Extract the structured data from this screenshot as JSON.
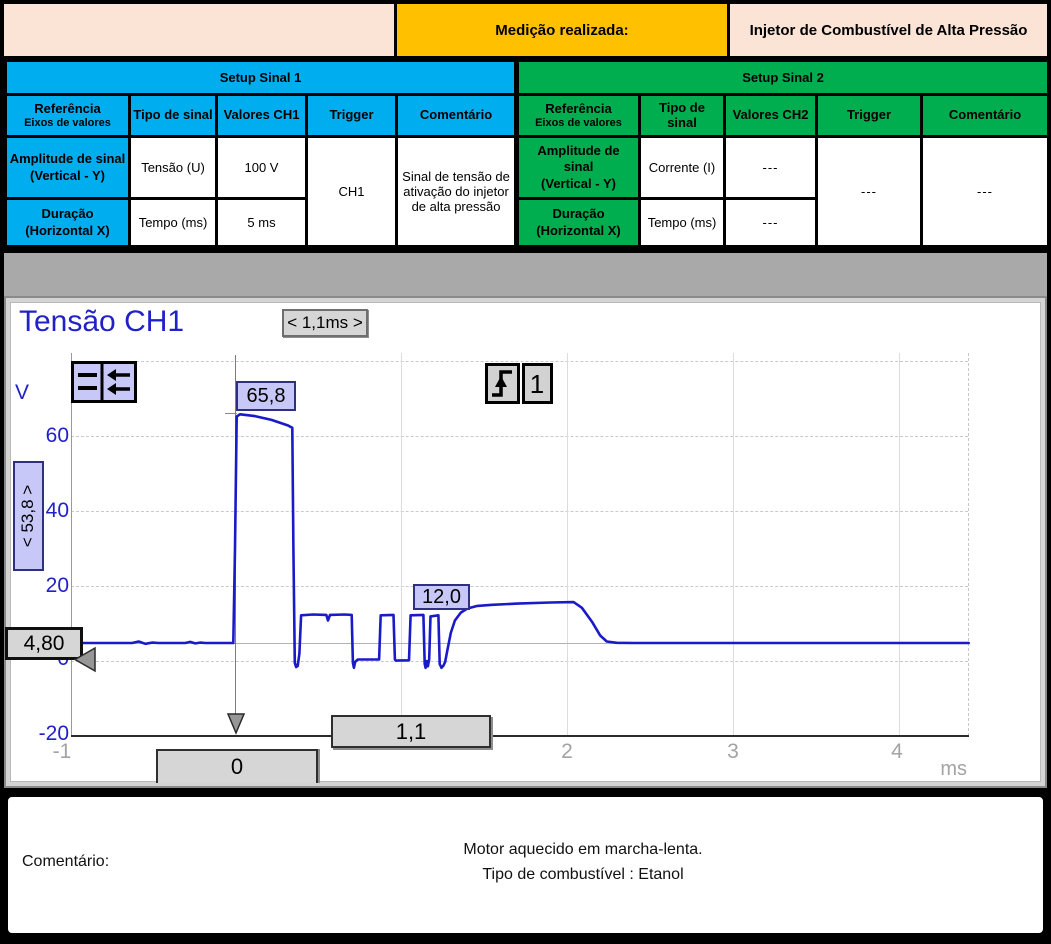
{
  "header": {
    "measurement_label": "Medição realizada:",
    "measurement_value": "Injetor de Combustível de Alta Pressão"
  },
  "colors": {
    "setup1_accent": "#00AEEF",
    "setup2_accent": "#00AD4F",
    "banner_orange": "#FFC000",
    "banner_pink": "#FBE3D6",
    "trace_blue": "#1A1AC8",
    "label_lavender": "#C8C8F8",
    "cursor_gray": "#D6D6D6"
  },
  "setup1": {
    "title": "Setup Sinal 1",
    "columns": [
      {
        "label": "Referência",
        "sub": "Eixos de valores"
      },
      {
        "label": "Tipo de sinal"
      },
      {
        "label": "Valores CH1"
      },
      {
        "label": "Trigger"
      },
      {
        "label": "Comentário"
      }
    ],
    "rows": [
      {
        "ref": "Amplitude de sinal",
        "ref_sub": "(Vertical - Y)",
        "tipo": "Tensão (U)",
        "valor": "100 V"
      },
      {
        "ref": "Duração",
        "ref_sub": "(Horizontal X)",
        "tipo": "Tempo (ms)",
        "valor": "5 ms"
      }
    ],
    "trigger": "CH1",
    "comment": "Sinal de tensão de ativação do injetor de alta pressão"
  },
  "setup2": {
    "title": "Setup Sinal 2",
    "columns": [
      {
        "label": "Referência",
        "sub": "Eixos de valores"
      },
      {
        "label": "Tipo de sinal"
      },
      {
        "label": "Valores CH2"
      },
      {
        "label": "Trigger"
      },
      {
        "label": "Comentário"
      }
    ],
    "rows": [
      {
        "ref": "Amplitude de sinal",
        "ref_sub": "(Vertical - Y)",
        "tipo": "Corrente (I)",
        "valor": "---"
      },
      {
        "ref": "Duração",
        "ref_sub": "(Horizontal X)",
        "tipo": "Tempo (ms)",
        "valor": "---"
      }
    ],
    "trigger": "---",
    "comment": "---"
  },
  "scope": {
    "title": "Tensão CH1",
    "timebase": "< 1,1ms >",
    "unit": "V",
    "trigger_channel": "1",
    "labels": {
      "peak": "65,8",
      "hold": "12,0",
      "delta": "< 53,8 >",
      "ground": "4,80",
      "cursor_dt": "1,1",
      "cursor_t0": "0"
    },
    "y_ticks": [
      "60",
      "40",
      "20",
      "0",
      "-20"
    ],
    "x_ticks": [
      "-1",
      "2",
      "3",
      "4"
    ],
    "x_unit": "ms"
  },
  "chart_data": {
    "type": "line",
    "title": "Tensão CH1",
    "xlabel": "ms",
    "ylabel": "V",
    "xlim": [
      -1,
      4.42
    ],
    "ylim": [
      -20,
      85
    ],
    "grid": true,
    "legend": "none",
    "annotations": [
      {
        "text": "65,8",
        "x": 0.05,
        "y": 65.8
      },
      {
        "text": "12,0",
        "x": 1.15,
        "y": 12.0
      },
      {
        "text": "4,80",
        "x": -1.0,
        "y": 4.8
      },
      {
        "text": "1,1",
        "meaning": "delta-t cursor, ms"
      },
      {
        "text": "< 53,8 >",
        "meaning": "delta-V cursor, V"
      }
    ],
    "series": [
      {
        "name": "Tensão CH1 (V)",
        "points": [
          [
            -1.0,
            4.8
          ],
          [
            -0.62,
            4.8
          ],
          [
            -0.58,
            5.2
          ],
          [
            -0.54,
            4.6
          ],
          [
            -0.5,
            4.9
          ],
          [
            -0.46,
            4.8
          ],
          [
            -0.3,
            4.8
          ],
          [
            -0.27,
            5.1
          ],
          [
            -0.24,
            4.7
          ],
          [
            -0.21,
            4.9
          ],
          [
            -0.18,
            4.8
          ],
          [
            -0.01,
            4.8
          ],
          [
            0.0,
            30.0
          ],
          [
            0.01,
            65.2
          ],
          [
            0.03,
            65.8
          ],
          [
            0.12,
            65.3
          ],
          [
            0.22,
            64.3
          ],
          [
            0.32,
            62.8
          ],
          [
            0.345,
            62.2
          ],
          [
            0.352,
            30.0
          ],
          [
            0.36,
            -0.5
          ],
          [
            0.368,
            -1.6
          ],
          [
            0.378,
            -1.3
          ],
          [
            0.388,
            2.0
          ],
          [
            0.398,
            12.2
          ],
          [
            0.47,
            12.4
          ],
          [
            0.55,
            12.3
          ],
          [
            0.56,
            10.8
          ],
          [
            0.572,
            12.3
          ],
          [
            0.66,
            12.4
          ],
          [
            0.703,
            12.3
          ],
          [
            0.71,
            -0.5
          ],
          [
            0.716,
            -1.8
          ],
          [
            0.724,
            -0.2
          ],
          [
            0.74,
            0.4
          ],
          [
            0.868,
            0.4
          ],
          [
            0.878,
            12.2
          ],
          [
            0.955,
            12.3
          ],
          [
            0.963,
            0.4
          ],
          [
            0.968,
            0.1
          ],
          [
            1.048,
            0.2
          ],
          [
            1.058,
            12.2
          ],
          [
            1.135,
            12.3
          ],
          [
            1.143,
            -0.8
          ],
          [
            1.148,
            -1.8
          ],
          [
            1.155,
            0.0
          ],
          [
            1.162,
            -1.4
          ],
          [
            1.17,
            0.5
          ],
          [
            1.178,
            11.9
          ],
          [
            1.225,
            12.2
          ],
          [
            1.233,
            -0.8
          ],
          [
            1.244,
            -1.8
          ],
          [
            1.256,
            -1.2
          ],
          [
            1.266,
            -0.2
          ],
          [
            1.278,
            2.5
          ],
          [
            1.3,
            7.5
          ],
          [
            1.325,
            10.8
          ],
          [
            1.36,
            12.9
          ],
          [
            1.4,
            14.0
          ],
          [
            1.46,
            14.7
          ],
          [
            1.55,
            15.0
          ],
          [
            1.7,
            15.3
          ],
          [
            1.9,
            15.6
          ],
          [
            2.04,
            15.7
          ],
          [
            2.09,
            14.2
          ],
          [
            2.15,
            10.5
          ],
          [
            2.2,
            6.8
          ],
          [
            2.24,
            5.2
          ],
          [
            2.3,
            4.85
          ],
          [
            2.4,
            4.8
          ],
          [
            4.42,
            4.8
          ]
        ]
      }
    ]
  },
  "comment_panel": {
    "label": "Comentário:",
    "line1": "Motor aquecido em marcha-lenta.",
    "line2": "Tipo de combustível : Etanol"
  }
}
